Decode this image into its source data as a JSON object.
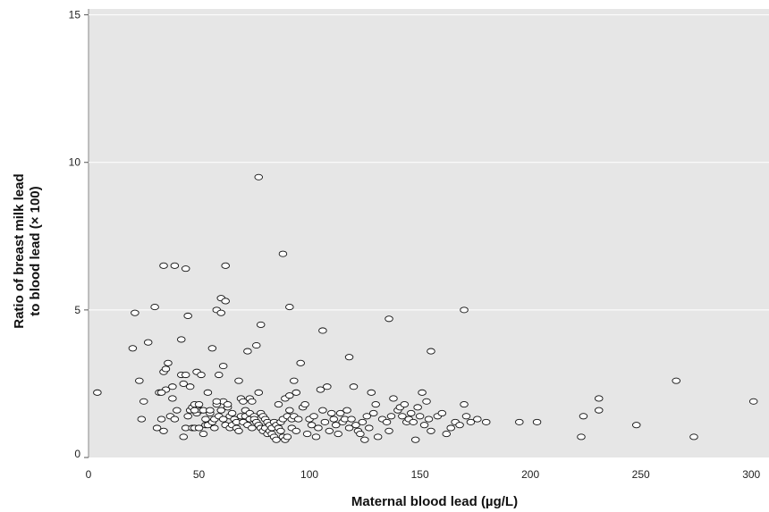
{
  "chart_data": {
    "type": "scatter",
    "title": "",
    "xlabel": "Maternal blood lead (µg/L)",
    "ylabel_line1": "Ratio of breast milk lead",
    "ylabel_line2": "to blood lead (× 100)",
    "xlim": [
      0,
      308
    ],
    "ylim": [
      0,
      15.2
    ],
    "xticks": [
      0,
      50,
      100,
      150,
      200,
      250,
      300
    ],
    "yticks": [
      0,
      5,
      10,
      15
    ],
    "grid": "horizontal",
    "legend": "none",
    "colors": {
      "background": "#e6e6e6",
      "grid": "#ffffff",
      "marker_fill": "#ffffff",
      "marker_stroke": "#111111"
    },
    "x": [
      4,
      20,
      21,
      23,
      24,
      25,
      27,
      30,
      31,
      32,
      33,
      34,
      34,
      35,
      35,
      36,
      37,
      38,
      38,
      39,
      40,
      42,
      42,
      43,
      43,
      44,
      44,
      45,
      45,
      46,
      46,
      47,
      47,
      48,
      48,
      49,
      49,
      50,
      50,
      51,
      51,
      52,
      52,
      53,
      53,
      54,
      54,
      55,
      55,
      56,
      56,
      57,
      57,
      58,
      58,
      59,
      59,
      60,
      60,
      61,
      61,
      61,
      62,
      62,
      63,
      63,
      64,
      64,
      65,
      65,
      66,
      67,
      67,
      68,
      68,
      69,
      69,
      70,
      70,
      71,
      71,
      72,
      72,
      73,
      73,
      73,
      74,
      74,
      75,
      75,
      76,
      76,
      77,
      77,
      78,
      78,
      79,
      79,
      80,
      80,
      81,
      81,
      82,
      82,
      83,
      83,
      84,
      84,
      85,
      85,
      86,
      86,
      87,
      87,
      88,
      88,
      89,
      89,
      90,
      90,
      91,
      91,
      92,
      92,
      93,
      93,
      94,
      94,
      95,
      96,
      97,
      98,
      99,
      100,
      101,
      102,
      103,
      104,
      105,
      106,
      107,
      108,
      109,
      110,
      111,
      112,
      113,
      114,
      115,
      116,
      117,
      118,
      119,
      120,
      121,
      122,
      123,
      124,
      125,
      126,
      127,
      128,
      129,
      130,
      131,
      133,
      135,
      136,
      137,
      138,
      140,
      141,
      142,
      143,
      144,
      145,
      146,
      147,
      148,
      149,
      150,
      151,
      152,
      153,
      154,
      155,
      158,
      160,
      162,
      164,
      166,
      168,
      170,
      171,
      173,
      176,
      180,
      195,
      203,
      223,
      224,
      231,
      231,
      248,
      266,
      274,
      301,
      34,
      39,
      44,
      60,
      62,
      77,
      88,
      91,
      106,
      118,
      136,
      170,
      155,
      78,
      58,
      33,
      48
    ],
    "y": [
      2.2,
      3.7,
      4.9,
      2.6,
      1.3,
      1.9,
      3.9,
      5.1,
      1.0,
      2.2,
      1.3,
      2.9,
      0.9,
      3.0,
      2.3,
      3.2,
      1.4,
      2.0,
      2.4,
      1.3,
      1.6,
      4.0,
      2.8,
      0.7,
      2.5,
      2.8,
      1.0,
      4.8,
      1.4,
      1.6,
      2.4,
      1.0,
      1.7,
      1.8,
      1.0,
      1.5,
      2.9,
      1.0,
      1.8,
      2.8,
      1.6,
      1.6,
      0.8,
      1.1,
      1.3,
      2.2,
      1.1,
      1.5,
      1.6,
      1.2,
      3.7,
      1.0,
      1.3,
      1.8,
      5.0,
      1.4,
      2.8,
      1.6,
      5.4,
      1.9,
      3.1,
      1.3,
      1.1,
      5.3,
      1.7,
      1.8,
      1.0,
      1.4,
      1.5,
      1.1,
      1.3,
      1.2,
      1.0,
      2.6,
      0.9,
      1.4,
      2.0,
      1.2,
      1.9,
      1.4,
      1.6,
      1.1,
      3.6,
      1.5,
      1.3,
      2.0,
      1.0,
      1.9,
      1.4,
      1.3,
      1.2,
      3.8,
      1.1,
      2.2,
      1.0,
      1.5,
      1.4,
      0.9,
      1.3,
      1.0,
      1.2,
      0.8,
      1.1,
      0.9,
      1.0,
      0.8,
      1.2,
      0.7,
      1.1,
      0.6,
      1.0,
      1.8,
      0.9,
      1.2,
      0.7,
      1.3,
      0.6,
      2.0,
      1.4,
      0.7,
      1.6,
      2.1,
      1.3,
      1.0,
      1.4,
      2.6,
      0.9,
      2.2,
      1.3,
      3.2,
      1.7,
      1.8,
      0.8,
      1.3,
      1.1,
      1.4,
      0.7,
      1.0,
      2.3,
      1.6,
      1.2,
      2.4,
      0.9,
      1.5,
      1.3,
      1.1,
      0.8,
      1.5,
      1.2,
      1.3,
      1.6,
      1.0,
      1.3,
      2.4,
      1.1,
      0.9,
      0.8,
      1.2,
      0.6,
      1.4,
      1.0,
      2.2,
      1.5,
      1.8,
      0.7,
      1.3,
      1.2,
      0.9,
      1.4,
      2.0,
      1.6,
      1.7,
      1.4,
      1.8,
      1.2,
      1.3,
      1.5,
      1.2,
      0.6,
      1.7,
      1.4,
      2.2,
      1.1,
      1.9,
      1.3,
      0.9,
      1.4,
      1.5,
      0.8,
      1.0,
      1.2,
      1.1,
      1.8,
      1.4,
      1.2,
      1.3,
      1.2,
      1.2,
      1.2,
      0.7,
      1.4,
      2.0,
      1.6,
      1.1,
      2.6,
      0.7,
      1.9,
      6.5,
      6.5,
      6.4,
      4.9,
      6.5,
      9.5,
      6.9,
      5.1,
      4.3,
      3.4,
      4.7,
      5.0,
      3.6,
      4.5,
      1.9,
      2.2,
      1.6
    ]
  }
}
